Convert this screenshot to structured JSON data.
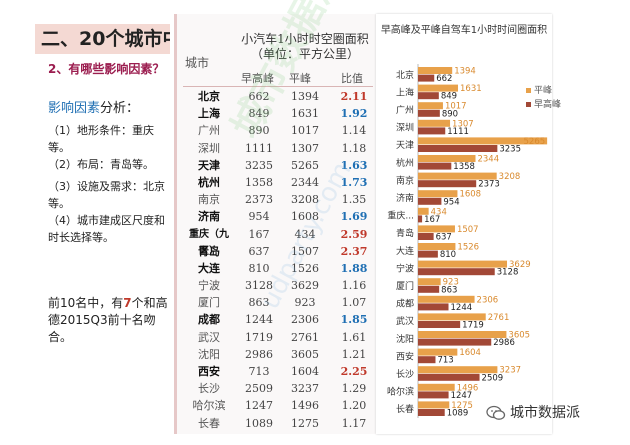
{
  "slide": {
    "title": "二、20个城市中",
    "subtitle": "2、有哪些影响因素？",
    "factors_heading": "影响因素",
    "factors_suffix": "分析：",
    "factors": [
      "（1）地形条件：重庆等。",
      "（2）布局：青岛等。",
      "（3）设施及需求：北京等。",
      "（4）城市建成区尺度和时长选择等。"
    ],
    "summary_prefix": "前10名中，有",
    "summary_highlight": "7",
    "summary_suffix": "个和高德2015Q3前十名吻合。"
  },
  "table": {
    "header_city": "城市",
    "header_main": "小汽车1小时时空圈面积（单位：平方公里）",
    "header_peak": "早高峰",
    "header_flat": "平峰",
    "header_ratio": "比值",
    "rows": [
      {
        "city": "北京",
        "peak": "662",
        "flat": "1394",
        "ratio": "2.11",
        "style": "red",
        "top": true
      },
      {
        "city": "上海",
        "peak": "849",
        "flat": "1631",
        "ratio": "1.92",
        "style": "blue",
        "top": true
      },
      {
        "city": "广州",
        "peak": "890",
        "flat": "1017",
        "ratio": "1.14",
        "style": "plain",
        "top": false
      },
      {
        "city": "深圳",
        "peak": "1111",
        "flat": "1307",
        "ratio": "1.18",
        "style": "plain",
        "top": false
      },
      {
        "city": "天津",
        "peak": "3235",
        "flat": "5265",
        "ratio": "1.63",
        "style": "blue",
        "top": true
      },
      {
        "city": "杭州",
        "peak": "1358",
        "flat": "2344",
        "ratio": "1.73",
        "style": "blue",
        "top": true
      },
      {
        "city": "南京",
        "peak": "2373",
        "flat": "3208",
        "ratio": "1.35",
        "style": "plain",
        "top": false
      },
      {
        "city": "济南",
        "peak": "954",
        "flat": "1608",
        "ratio": "1.69",
        "style": "blue",
        "top": true
      },
      {
        "city": "重庆（九区）",
        "peak": "167",
        "flat": "434",
        "ratio": "2.59",
        "style": "red",
        "top": true
      },
      {
        "city": "青岛",
        "peak": "637",
        "flat": "1507",
        "ratio": "2.37",
        "style": "red",
        "top": true
      },
      {
        "city": "大连",
        "peak": "810",
        "flat": "1526",
        "ratio": "1.88",
        "style": "blue",
        "top": true
      },
      {
        "city": "宁波",
        "peak": "3128",
        "flat": "3629",
        "ratio": "1.16",
        "style": "plain",
        "top": false
      },
      {
        "city": "厦门",
        "peak": "863",
        "flat": "923",
        "ratio": "1.07",
        "style": "plain",
        "top": false
      },
      {
        "city": "成都",
        "peak": "1244",
        "flat": "2306",
        "ratio": "1.85",
        "style": "blue",
        "top": true
      },
      {
        "city": "武汉",
        "peak": "1719",
        "flat": "2761",
        "ratio": "1.61",
        "style": "plain",
        "top": false
      },
      {
        "city": "沈阳",
        "peak": "2986",
        "flat": "3605",
        "ratio": "1.21",
        "style": "plain",
        "top": false
      },
      {
        "city": "西安",
        "peak": "713",
        "flat": "1604",
        "ratio": "2.25",
        "style": "red",
        "top": true
      },
      {
        "city": "长沙",
        "peak": "2509",
        "flat": "3237",
        "ratio": "1.29",
        "style": "plain",
        "top": false
      },
      {
        "city": "哈尔滨",
        "peak": "1247",
        "flat": "1496",
        "ratio": "1.20",
        "style": "plain",
        "top": false
      },
      {
        "city": "长春",
        "peak": "1089",
        "flat": "1275",
        "ratio": "1.17",
        "style": "plain",
        "top": false
      }
    ]
  },
  "chart_data": {
    "type": "bar",
    "orientation": "horizontal",
    "title": "早高峰及平峰自驾车1小时时间圈面积",
    "legend_position": "right",
    "xlim": [
      0,
      5300
    ],
    "categories": [
      "北京",
      "上海",
      "广州",
      "深圳",
      "天津",
      "杭州",
      "南京",
      "济南",
      "重庆...",
      "青岛",
      "大连",
      "宁波",
      "厦门",
      "成都",
      "武汉",
      "沈阳",
      "西安",
      "长沙",
      "哈尔滨",
      "长春"
    ],
    "series": [
      {
        "name": "平峰",
        "color": "#e8a14a",
        "values": [
          1394,
          1631,
          1017,
          1307,
          5265,
          2344,
          3208,
          1608,
          434,
          1507,
          1526,
          3629,
          923,
          2306,
          2761,
          3605,
          1604,
          3237,
          1496,
          1275
        ]
      },
      {
        "name": "早高峰",
        "color": "#a24836",
        "values": [
          662,
          849,
          890,
          1111,
          3235,
          1358,
          2373,
          954,
          167,
          637,
          810,
          3128,
          863,
          1244,
          1719,
          2986,
          713,
          2509,
          1247,
          1089
        ]
      }
    ]
  },
  "watermark": {
    "text1": "城市数据派",
    "text2": "udparty.com"
  },
  "brand": {
    "label": "城市数据派"
  }
}
